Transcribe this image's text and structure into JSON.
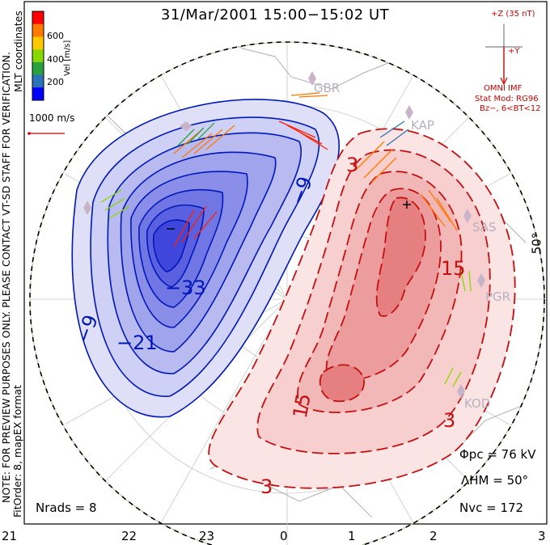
{
  "title": "31/Mar/2001 15:00−15:02 UT",
  "coordinates_label": "MLT coordinates",
  "notes": {
    "preview": "NOTE: FOR PREVIEW PURPOSES ONLY. PLEASE CONTACT VT-SD STAFF FOR VERIFICATION.",
    "fit": "FitOrder: 8, mapEX format"
  },
  "velocity_scale": {
    "label": "Vel [m/s]",
    "ticks": [
      "600",
      "400",
      "200"
    ],
    "colors": [
      "#ff0000",
      "#ff7a00",
      "#ffc800",
      "#88d800",
      "#2aa040",
      "#2c72b8",
      "#0000ff"
    ]
  },
  "reference_vector": {
    "label": "1000 m/s",
    "color": "#cc0000"
  },
  "imf": {
    "bz_label": "+Z (35 nT)",
    "by_label": "+Y",
    "source": "OMNI IMF",
    "model": "Stat Mod: RG96",
    "condition": "Bz−, 6<BT<12",
    "color": "#cc0000"
  },
  "latitude_label": "50°",
  "stations": [
    "GBR",
    "KAP",
    "SAS",
    "PGR",
    "KOD"
  ],
  "contour_labels": {
    "negative": [
      "−9",
      "−9",
      "−21",
      "−33"
    ],
    "positive": [
      "3",
      "15",
      "15",
      "3",
      "3"
    ]
  },
  "extrema": {
    "min": "−",
    "max": "+"
  },
  "stats": {
    "phi_pc": "Φpc = 76 kV",
    "lambda_hm": "ΛHM = 50°",
    "n_rads": "Nrads = 8",
    "n_vc": "Nvc = 172"
  },
  "mlt_ticks": [
    "21",
    "22",
    "23",
    "0",
    "1",
    "2",
    "3"
  ],
  "colors": {
    "negative_cell": "#0018b8",
    "positive_cell": "#c41010",
    "fill_negative": "#4048e8",
    "fill_positive": "#f06060"
  }
}
